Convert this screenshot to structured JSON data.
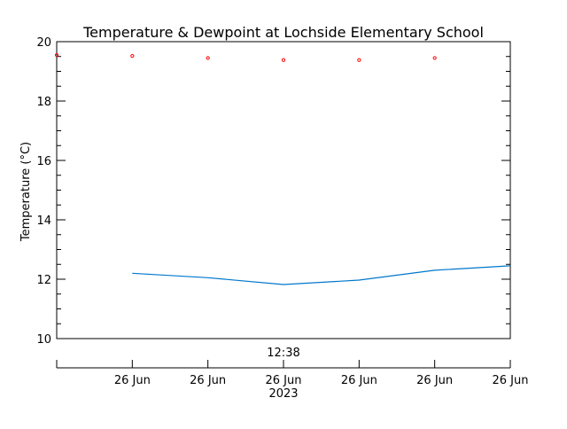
{
  "chart_data": {
    "type": "line",
    "title": "Temperature & Dewpoint at Lochside Elementary School",
    "ylabel": "Temperature (°C)",
    "ylim": [
      10,
      20
    ],
    "y_ticks": [
      10,
      12,
      14,
      16,
      18,
      20
    ],
    "y_tick_labels": [
      "10",
      "12",
      "14",
      "16",
      "18",
      "20"
    ],
    "time_label": "12:38",
    "x_tick_labels": [
      "26 Jun",
      "26 Jun",
      "26 Jun",
      "26 Jun",
      "26 Jun",
      "26 Jun"
    ],
    "x_year_label": "2023",
    "grid": false,
    "series": [
      {
        "role": "temperature",
        "color": "#ff0000",
        "style": "markers",
        "points": [
          [
            0,
            19.55
          ],
          [
            1,
            19.52
          ],
          [
            2,
            19.45
          ],
          [
            3,
            19.38
          ],
          [
            4,
            19.38
          ],
          [
            5,
            19.45
          ]
        ]
      },
      {
        "role": "dewpoint",
        "color": "#0077cc",
        "style": "line",
        "points": [
          [
            1,
            12.2
          ],
          [
            2,
            12.05
          ],
          [
            3,
            11.82
          ],
          [
            4,
            11.97
          ],
          [
            5,
            12.3
          ],
          [
            6,
            12.45
          ]
        ]
      }
    ]
  }
}
